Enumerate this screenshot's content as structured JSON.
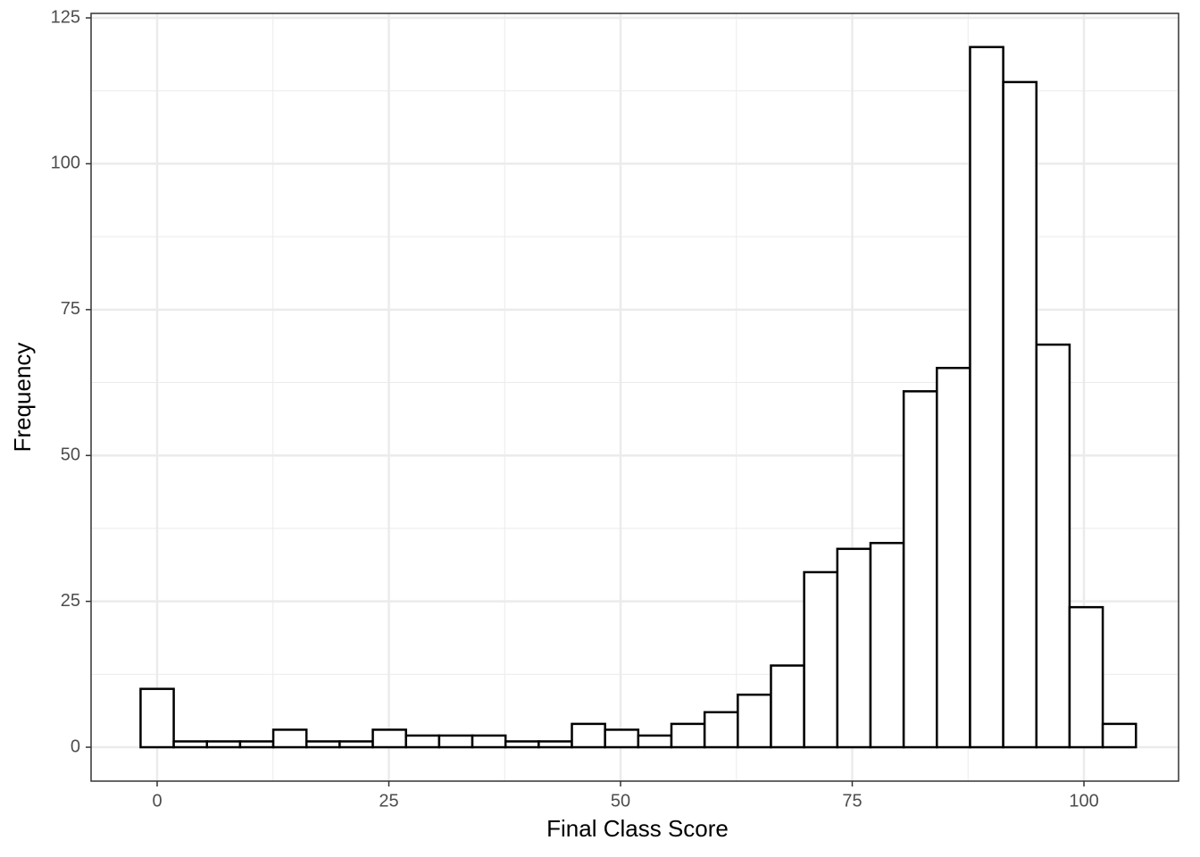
{
  "chart_data": {
    "type": "histogram",
    "x_label": "Final Class Score",
    "y_label": "Frequency",
    "bins": [
      -1.79,
      1.79,
      5.37,
      8.95,
      12.53,
      16.11,
      19.69,
      23.27,
      26.85,
      30.43,
      34.01,
      37.59,
      41.17,
      44.75,
      48.33,
      51.91,
      55.49,
      59.07,
      62.65,
      66.23,
      69.81,
      73.39,
      76.97,
      80.55,
      84.13,
      87.71,
      91.29,
      94.87,
      98.45,
      102.03,
      105.61
    ],
    "values": [
      10,
      1,
      1,
      1,
      3,
      1,
      1,
      3,
      2,
      2,
      2,
      1,
      1,
      4,
      3,
      2,
      4,
      6,
      9,
      14,
      30,
      34,
      35,
      61,
      65,
      120,
      114,
      69,
      24,
      4
    ],
    "color": "#ffffff",
    "edge_color": "#000000",
    "xlim": [
      -7.13,
      110.21
    ],
    "ylim": [
      -5.81,
      125.77
    ],
    "xticks": [
      0,
      25,
      50,
      75,
      100
    ],
    "yticks": [
      0,
      25,
      50,
      75,
      100,
      125
    ],
    "grid": true,
    "minor_grid": true
  }
}
